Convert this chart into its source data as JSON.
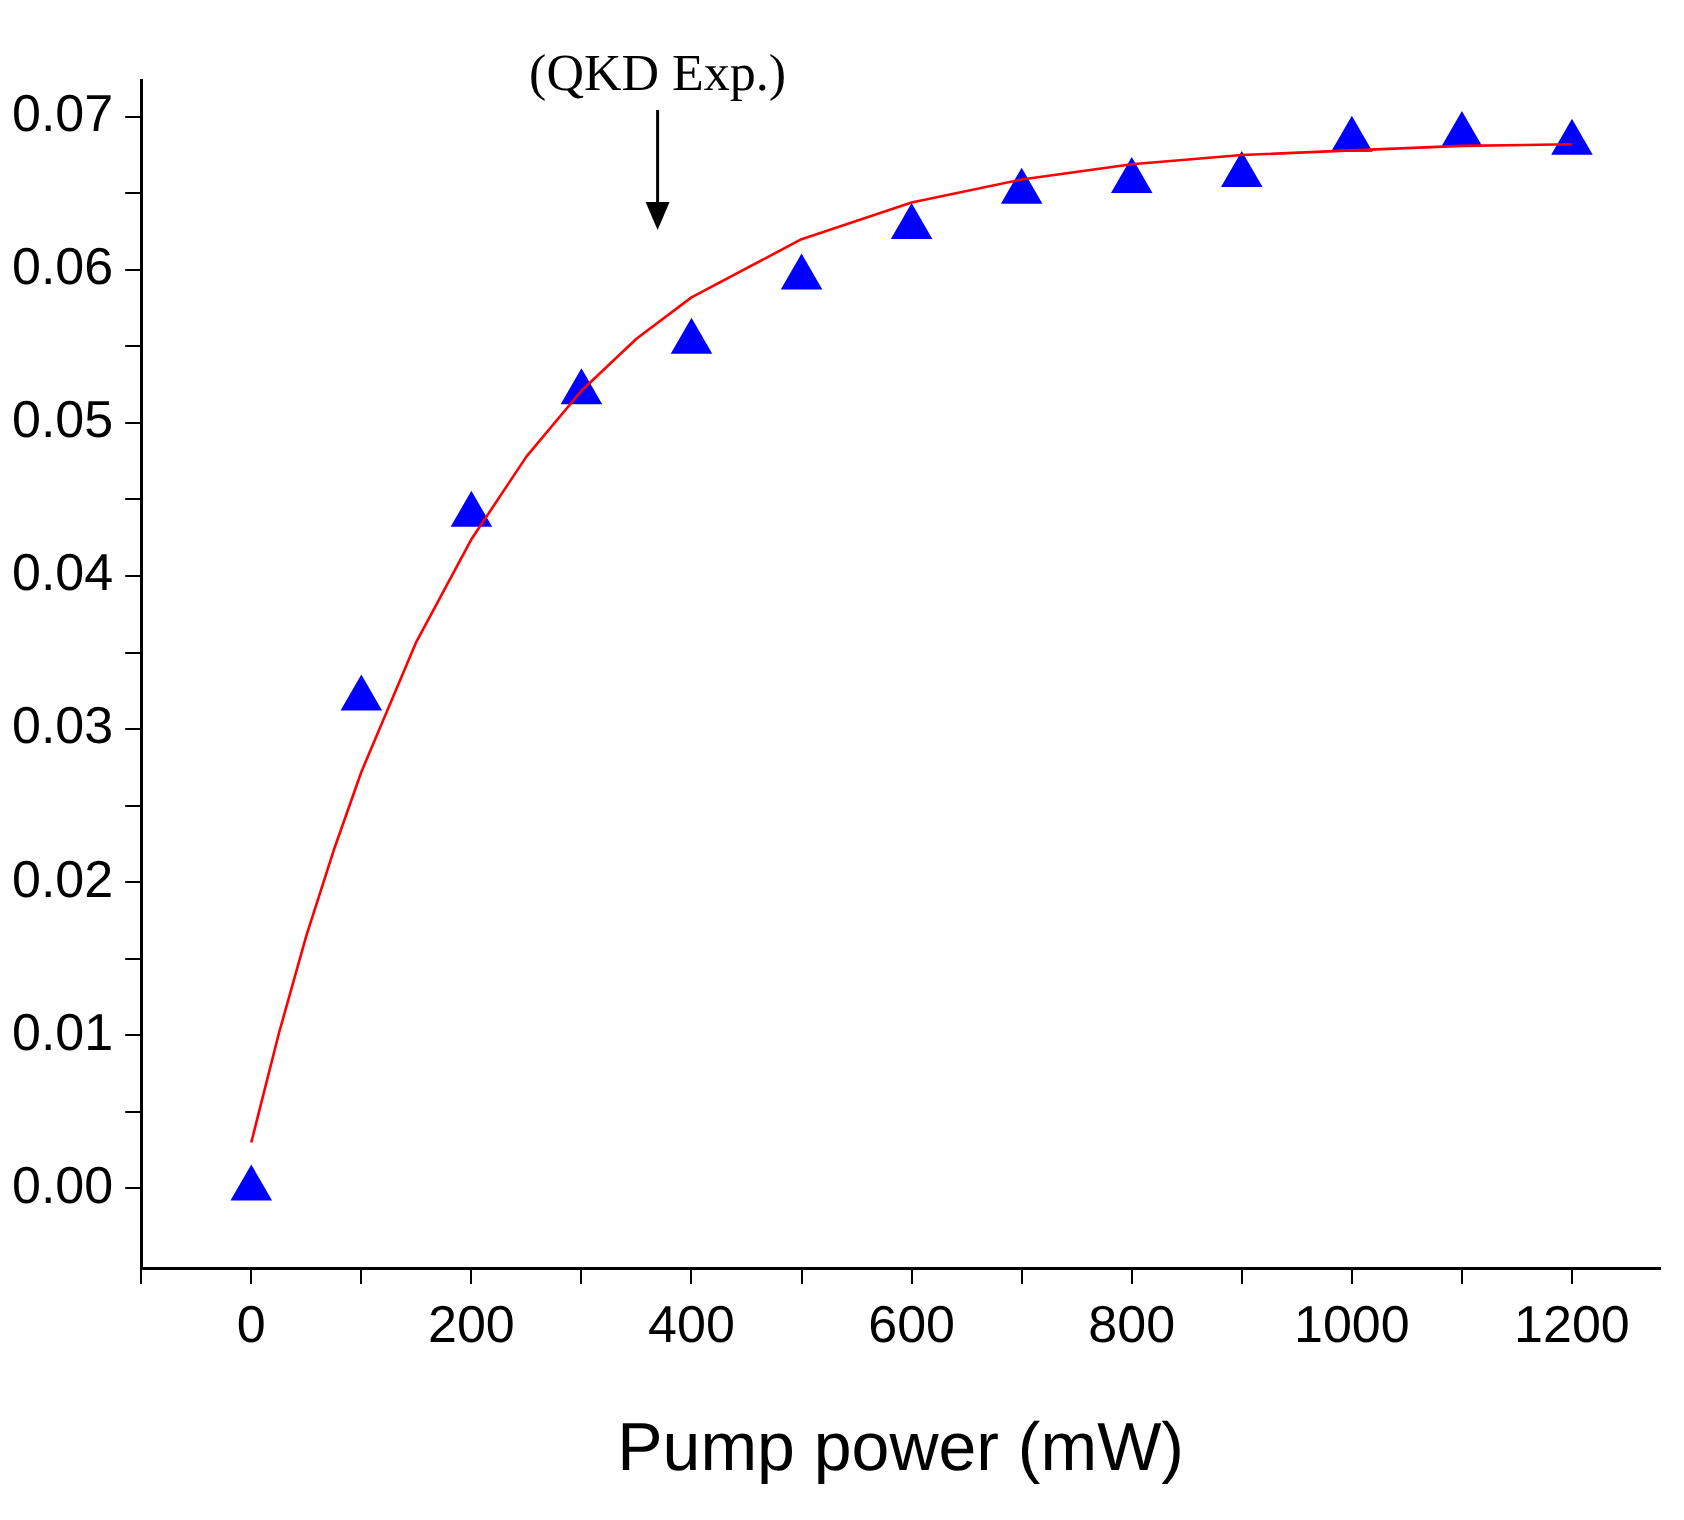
{
  "chart_data": {
    "type": "scatter",
    "xlabel": "Pump power (mW)",
    "xlim": [
      -100,
      1280
    ],
    "xticks": [
      {
        "value": -100,
        "label": null
      },
      0,
      {
        "value": 100,
        "label": null
      },
      200,
      {
        "value": 300,
        "label": null
      },
      400,
      {
        "value": 500,
        "label": null
      },
      600,
      {
        "value": 700,
        "label": null
      },
      800,
      {
        "value": 900,
        "label": null
      },
      1000,
      {
        "value": 1100,
        "label": null
      },
      1200
    ],
    "ylim": [
      -0.0052,
      0.0724
    ],
    "yticks": [
      {
        "value": 0,
        "label": "0.00"
      },
      {
        "value": 0.005,
        "label": null
      },
      {
        "value": 0.01,
        "label": "0.01"
      },
      {
        "value": 0.015,
        "label": null
      },
      {
        "value": 0.02,
        "label": "0.02"
      },
      {
        "value": 0.025,
        "label": null
      },
      {
        "value": 0.03,
        "label": "0.03"
      },
      {
        "value": 0.035,
        "label": null
      },
      {
        "value": 0.04,
        "label": "0.04"
      },
      {
        "value": 0.045,
        "label": null
      },
      {
        "value": 0.05,
        "label": "0.05"
      },
      {
        "value": 0.055,
        "label": null
      },
      {
        "value": 0.06,
        "label": "0.06"
      },
      {
        "value": 0.065,
        "label": null
      },
      {
        "value": 0.07,
        "label": "0.07"
      }
    ],
    "grid": false,
    "legend": false,
    "annotations": [
      "(QKD Exp.)"
    ],
    "series": [
      {
        "type": "scatter",
        "color": "#0000ff",
        "marker": "triangle",
        "x": [
          0,
          100,
          200,
          300,
          400,
          500,
          600,
          700,
          800,
          900,
          1000,
          1100,
          1200
        ],
        "values": [
          0.0,
          0.032,
          0.044,
          0.052,
          0.0553,
          0.0595,
          0.0628,
          0.0651,
          0.0658,
          0.0662,
          0.0685,
          0.0688,
          0.0683
        ]
      },
      {
        "type": "line",
        "color": "#ff0000",
        "marker": "none",
        "line_style": "solid",
        "x": [
          0,
          25,
          50,
          75,
          100,
          150,
          200,
          250,
          300,
          350,
          400,
          500,
          600,
          700,
          800,
          900,
          1000,
          1100,
          1200
        ],
        "values": [
          0.003,
          0.0101,
          0.0165,
          0.0221,
          0.0272,
          0.0357,
          0.0424,
          0.0478,
          0.0521,
          0.0555,
          0.0582,
          0.062,
          0.0644,
          0.0659,
          0.0669,
          0.0675,
          0.0678,
          0.0681,
          0.0682
        ]
      }
    ]
  }
}
